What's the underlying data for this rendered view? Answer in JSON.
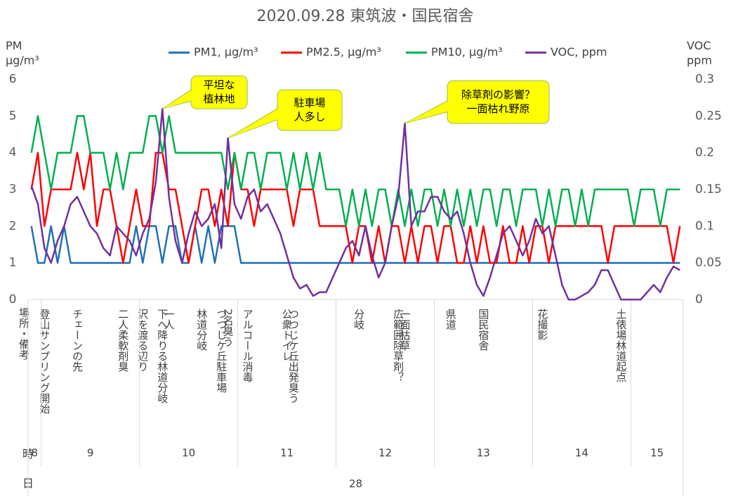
{
  "chart_data": {
    "type": "line",
    "title": "2020.09.28 東筑波・国民宿舎",
    "y_axis_title": [
      "PM",
      "μg/m³"
    ],
    "y2_axis_title": [
      "VOC",
      "ppm"
    ],
    "notes_header": "場所・備考",
    "hour_axis_label": "時",
    "day_axis_label": "日",
    "ylim": [
      0,
      6
    ],
    "yticks": [
      0,
      1,
      2,
      3,
      4,
      5,
      6
    ],
    "y2lim": [
      0,
      0.3
    ],
    "y2ticks": [
      0,
      0.05,
      0.1,
      0.15,
      0.2,
      0.25,
      0.3
    ],
    "grid": false,
    "legend": "top",
    "categories": [
      null,
      null,
      "登山サンプリング開始",
      null,
      null,
      null,
      null,
      "チェーンの先",
      null,
      null,
      null,
      null,
      null,
      null,
      "二人柔軟剤臭",
      null,
      null,
      "沢を渡る辺り",
      null,
      null,
      "下へ降りる林道分岐",
      "一人",
      null,
      null,
      null,
      null,
      "林道分岐",
      null,
      null,
      "つつじケ丘駐車場",
      "2名臭う",
      null,
      null,
      "アルコール消毒",
      null,
      null,
      null,
      null,
      null,
      "公衆トイレ",
      "つつじケ丘出発臭う",
      null,
      null,
      null,
      null,
      null,
      null,
      null,
      null,
      null,
      "分岐",
      null,
      null,
      null,
      null,
      null,
      "広範囲除草剤？",
      "一面枯草",
      null,
      null,
      null,
      null,
      null,
      null,
      "県道",
      null,
      null,
      null,
      null,
      "国民宿舎",
      null,
      null,
      null,
      null,
      null,
      null,
      null,
      null,
      "花撮影",
      null,
      null,
      null,
      null,
      null,
      null,
      null,
      null,
      null,
      null,
      null,
      "土俵場林道起点",
      null,
      null,
      null,
      null,
      null,
      null,
      null,
      null,
      null
    ],
    "hour_groups": [
      {
        "label": "8",
        "count": 2
      },
      {
        "label": "9",
        "count": 15
      },
      {
        "label": "10",
        "count": 15
      },
      {
        "label": "11",
        "count": 15
      },
      {
        "label": "12",
        "count": 15
      },
      {
        "label": "13",
        "count": 15
      },
      {
        "label": "14",
        "count": 15
      },
      {
        "label": "15",
        "count": 8
      }
    ],
    "day_groups": [
      {
        "label": "28",
        "count": 100
      }
    ],
    "series": [
      {
        "name": "PM1, μg/m³",
        "color": "#1f70b8",
        "axis": "y",
        "values": [
          2,
          1,
          1,
          2,
          1,
          2,
          1,
          1,
          1,
          1,
          1,
          1,
          1,
          1,
          1,
          1,
          2,
          1,
          2,
          2,
          1,
          2,
          2,
          1,
          1,
          2,
          1,
          2,
          1,
          2,
          2,
          2,
          1,
          1,
          1,
          1,
          1,
          1,
          1,
          1,
          1,
          1,
          1,
          1,
          1,
          1,
          1,
          1,
          1,
          1,
          1,
          1,
          1,
          1,
          1,
          1,
          1,
          1,
          1,
          1,
          1,
          1,
          1,
          1,
          1,
          1,
          1,
          1,
          1,
          1,
          1,
          1,
          1,
          1,
          1,
          1,
          1,
          1,
          1,
          1,
          1,
          1,
          1,
          1,
          1,
          1,
          1,
          1,
          1,
          1,
          1,
          1,
          1,
          1,
          1,
          1,
          1,
          1,
          1,
          1
        ]
      },
      {
        "name": "PM2.5, μg/m³",
        "color": "#ff0000",
        "axis": "y",
        "values": [
          3,
          4,
          2,
          3,
          3,
          3,
          3,
          4,
          3,
          4,
          2,
          3,
          3,
          2,
          1,
          2,
          3,
          2,
          2,
          4,
          4,
          3,
          3,
          2,
          1,
          2,
          3,
          3,
          2,
          3,
          2,
          4,
          3,
          3,
          2,
          3,
          3,
          3,
          3,
          3,
          2,
          3,
          3,
          3,
          2,
          2,
          2,
          2,
          2,
          1,
          2,
          2,
          1,
          2,
          1,
          2,
          2,
          1,
          2,
          1,
          2,
          2,
          1,
          2,
          2,
          1,
          1,
          2,
          1,
          2,
          1,
          1,
          2,
          1,
          1,
          2,
          1,
          2,
          2,
          1,
          2,
          2,
          2,
          2,
          2,
          2,
          2,
          2,
          1,
          2,
          2,
          2,
          2,
          2,
          2,
          2,
          2,
          2,
          1,
          2
        ]
      },
      {
        "name": "PM10, μg/m³",
        "color": "#00b050",
        "axis": "y",
        "values": [
          4,
          5,
          4,
          3,
          4,
          4,
          4,
          5,
          5,
          4,
          4,
          4,
          3,
          4,
          3,
          4,
          4,
          4,
          5,
          5,
          4,
          5,
          4,
          4,
          4,
          4,
          4,
          4,
          4,
          4,
          3,
          4,
          3,
          4,
          4,
          3,
          4,
          4,
          4,
          3,
          4,
          3,
          4,
          3,
          4,
          3,
          3,
          3,
          2,
          3,
          2,
          3,
          2,
          3,
          3,
          2,
          3,
          2,
          3,
          2,
          3,
          3,
          2,
          3,
          2,
          3,
          2,
          3,
          2,
          3,
          3,
          2,
          3,
          3,
          2,
          3,
          3,
          3,
          2,
          3,
          2,
          3,
          3,
          2,
          3,
          2,
          3,
          3,
          3,
          3,
          3,
          3,
          2,
          3,
          3,
          3,
          2,
          3,
          3,
          3
        ]
      },
      {
        "name": "VOC, ppm",
        "color": "#7030a0",
        "axis": "y2",
        "values": [
          0.155,
          0.13,
          0.07,
          0.05,
          0.08,
          0.1,
          0.13,
          0.14,
          0.12,
          0.1,
          0.09,
          0.07,
          0.06,
          0.1,
          0.09,
          0.08,
          0.06,
          0.09,
          0.11,
          0.16,
          0.26,
          0.14,
          0.08,
          0.05,
          0.09,
          0.12,
          0.1,
          0.11,
          0.13,
          0.07,
          0.22,
          0.13,
          0.11,
          0.14,
          0.15,
          0.12,
          0.13,
          0.11,
          0.09,
          0.06,
          0.03,
          0.015,
          0.02,
          0.005,
          0.01,
          0.01,
          0.03,
          0.05,
          0.07,
          0.08,
          0.06,
          0.1,
          0.06,
          0.03,
          0.05,
          0.1,
          0.14,
          0.24,
          0.1,
          0.12,
          0.12,
          0.14,
          0.14,
          0.12,
          0.11,
          0.12,
          0.09,
          0.05,
          0.02,
          0.005,
          0.03,
          0.06,
          0.09,
          0.1,
          0.08,
          0.06,
          0.08,
          0.11,
          0.09,
          0.1,
          0.06,
          0.02,
          0,
          0,
          0.005,
          0.01,
          0.02,
          0.04,
          0.04,
          0.02,
          0,
          0,
          0,
          0,
          0.01,
          0.02,
          0.01,
          0.03,
          0.045,
          0.04
        ]
      }
    ],
    "annotations": [
      {
        "text": [
          "平坦な",
          "植林地"
        ],
        "series": 3,
        "index": 20
      },
      {
        "text": [
          "駐車場",
          "人多し"
        ],
        "series": 3,
        "index": 30
      },
      {
        "text": [
          "除草剤の影響？",
          "一面枯れ野原"
        ],
        "series": 3,
        "index": 57
      }
    ]
  }
}
